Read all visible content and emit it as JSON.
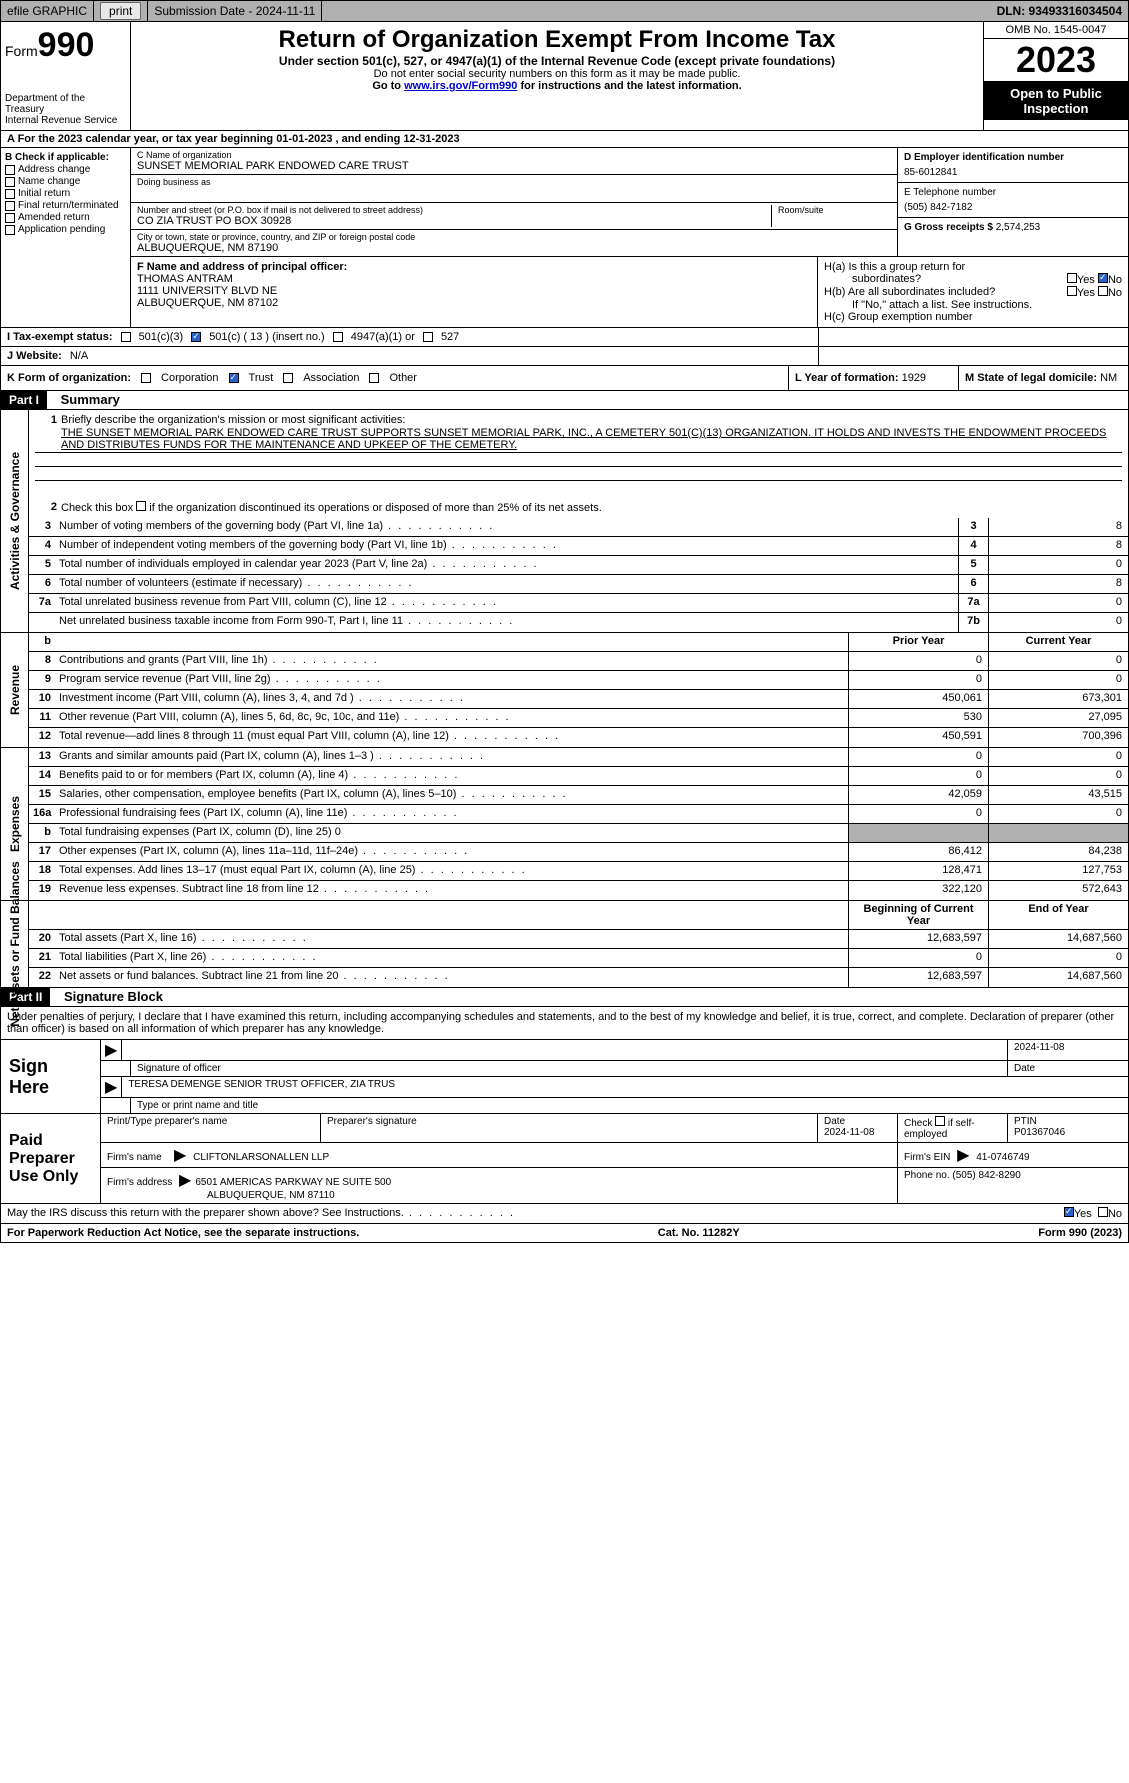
{
  "top_bar": {
    "efile_label": "efile GRAPHIC",
    "print_btn": "print",
    "submission_label": "Submission Date - 2024-11-11",
    "dln": "DLN: 93493316034504"
  },
  "header": {
    "form_word": "Form",
    "form_num": "990",
    "dept": "Department of the Treasury",
    "irs": "Internal Revenue Service",
    "title": "Return of Organization Exempt From Income Tax",
    "sub": "Under section 501(c), 527, or 4947(a)(1) of the Internal Revenue Code (except private foundations)",
    "ssn_note": "Do not enter social security numbers on this form as it may be made public.",
    "goto_pre": "Go to ",
    "goto_link": "www.irs.gov/Form990",
    "goto_post": " for instructions and the latest information.",
    "omb": "OMB No. 1545-0047",
    "year": "2023",
    "inspection": "Open to Public Inspection"
  },
  "row_a": "A For the 2023 calendar year, or tax year beginning 01-01-2023    , and ending 12-31-2023",
  "col_b": {
    "header": "B Check if applicable:",
    "items": [
      "Address change",
      "Name change",
      "Initial return",
      "Final return/terminated",
      "Amended return",
      "Application pending"
    ]
  },
  "col_c": {
    "name_label": "C Name of organization",
    "name": "SUNSET MEMORIAL PARK ENDOWED CARE TRUST",
    "dba_label": "Doing business as",
    "addr_label": "Number and street (or P.O. box if mail is not delivered to street address)",
    "addr": "CO ZIA TRUST PO BOX 30928",
    "room_label": "Room/suite",
    "city_label": "City or town, state or province, country, and ZIP or foreign postal code",
    "city": "ALBUQUERQUE, NM  87190"
  },
  "col_d": {
    "ein_label": "D Employer identification number",
    "ein": "85-6012841",
    "tel_label": "E Telephone number",
    "tel": "(505) 842-7182",
    "gross_label": "G Gross receipts $",
    "gross": "2,574,253"
  },
  "f_block": {
    "label": "F  Name and address of principal officer:",
    "name": "THOMAS ANTRAM",
    "addr1": "1111 UNIVERSITY BLVD NE",
    "addr2": "ALBUQUERQUE, NM  87102"
  },
  "h_block": {
    "ha": "H(a)  Is this a group return for",
    "ha2": "subordinates?",
    "hb": "H(b)  Are all subordinates included?",
    "hb_note": "If \"No,\" attach a list. See instructions.",
    "hc": "H(c)  Group exemption number",
    "yes": "Yes",
    "no": "No"
  },
  "i_row": {
    "label": "I    Tax-exempt status:",
    "opts": [
      "501(c)(3)",
      "501(c) ( 13 ) (insert no.)",
      "4947(a)(1) or",
      "527"
    ]
  },
  "j_row": {
    "label": "J    Website:",
    "val": "N/A"
  },
  "k_row": {
    "label": "K Form of organization:",
    "opts": [
      "Corporation",
      "Trust",
      "Association",
      "Other"
    ],
    "l_label": "L Year of formation:",
    "l_val": "1929",
    "m_label": "M State of legal domicile:",
    "m_val": "NM"
  },
  "part1": {
    "label": "Part I",
    "title": "Summary"
  },
  "activities": {
    "side": "Activities & Governance",
    "q1_label": "1",
    "q1": "Briefly describe the organization's mission or most significant activities:",
    "q1_text": "THE SUNSET MEMORIAL PARK ENDOWED CARE TRUST SUPPORTS SUNSET MEMORIAL PARK, INC., A CEMETERY 501(C)(13) ORGANIZATION. IT HOLDS AND INVESTS THE ENDOWMENT PROCEEDS AND DISTRIBUTES FUNDS FOR THE MAINTENANCE AND UPKEEP OF THE CEMETERY.",
    "q2_label": "2",
    "q2": "Check this box      if the organization discontinued its operations or disposed of more than 25% of its net assets.",
    "rows": [
      {
        "n": "3",
        "d": "Number of voting members of the governing body (Part VI, line 1a)",
        "b": "3",
        "v": "8"
      },
      {
        "n": "4",
        "d": "Number of independent voting members of the governing body (Part VI, line 1b)",
        "b": "4",
        "v": "8"
      },
      {
        "n": "5",
        "d": "Total number of individuals employed in calendar year 2023 (Part V, line 2a)",
        "b": "5",
        "v": "0"
      },
      {
        "n": "6",
        "d": "Total number of volunteers (estimate if necessary)",
        "b": "6",
        "v": "8"
      },
      {
        "n": "7a",
        "d": "Total unrelated business revenue from Part VIII, column (C), line 12",
        "b": "7a",
        "v": "0"
      },
      {
        "n": "",
        "d": "Net unrelated business taxable income from Form 990-T, Part I, line 11",
        "b": "7b",
        "v": "0"
      }
    ]
  },
  "revenue": {
    "side": "Revenue",
    "header": {
      "b": "b",
      "p": "Prior Year",
      "c": "Current Year"
    },
    "rows": [
      {
        "n": "8",
        "d": "Contributions and grants (Part VIII, line 1h)",
        "p": "0",
        "c": "0"
      },
      {
        "n": "9",
        "d": "Program service revenue (Part VIII, line 2g)",
        "p": "0",
        "c": "0"
      },
      {
        "n": "10",
        "d": "Investment income (Part VIII, column (A), lines 3, 4, and 7d )",
        "p": "450,061",
        "c": "673,301"
      },
      {
        "n": "11",
        "d": "Other revenue (Part VIII, column (A), lines 5, 6d, 8c, 9c, 10c, and 11e)",
        "p": "530",
        "c": "27,095"
      },
      {
        "n": "12",
        "d": "Total revenue—add lines 8 through 11 (must equal Part VIII, column (A), line 12)",
        "p": "450,591",
        "c": "700,396"
      }
    ]
  },
  "expenses": {
    "side": "Expenses",
    "rows": [
      {
        "n": "13",
        "d": "Grants and similar amounts paid (Part IX, column (A), lines 1–3 )",
        "p": "0",
        "c": "0"
      },
      {
        "n": "14",
        "d": "Benefits paid to or for members (Part IX, column (A), line 4)",
        "p": "0",
        "c": "0"
      },
      {
        "n": "15",
        "d": "Salaries, other compensation, employee benefits (Part IX, column (A), lines 5–10)",
        "p": "42,059",
        "c": "43,515"
      },
      {
        "n": "16a",
        "d": "Professional fundraising fees (Part IX, column (A), line 11e)",
        "p": "0",
        "c": "0"
      },
      {
        "n": "b",
        "d": "Total fundraising expenses (Part IX, column (D), line 25) 0",
        "p": "",
        "c": "",
        "shaded": true
      },
      {
        "n": "17",
        "d": "Other expenses (Part IX, column (A), lines 11a–11d, 11f–24e)",
        "p": "86,412",
        "c": "84,238"
      },
      {
        "n": "18",
        "d": "Total expenses. Add lines 13–17 (must equal Part IX, column (A), line 25)",
        "p": "128,471",
        "c": "127,753"
      },
      {
        "n": "19",
        "d": "Revenue less expenses. Subtract line 18 from line 12",
        "p": "322,120",
        "c": "572,643"
      }
    ]
  },
  "net": {
    "side": "Net Assets or Fund Balances",
    "header": {
      "p": "Beginning of Current Year",
      "c": "End of Year"
    },
    "rows": [
      {
        "n": "20",
        "d": "Total assets (Part X, line 16)",
        "p": "12,683,597",
        "c": "14,687,560"
      },
      {
        "n": "21",
        "d": "Total liabilities (Part X, line 26)",
        "p": "0",
        "c": "0"
      },
      {
        "n": "22",
        "d": "Net assets or fund balances. Subtract line 21 from line 20",
        "p": "12,683,597",
        "c": "14,687,560"
      }
    ]
  },
  "part2": {
    "label": "Part II",
    "title": "Signature Block"
  },
  "sig_text": "Under penalties of perjury, I declare that I have examined this return, including accompanying schedules and statements, and to the best of my knowledge and belief, it is true, correct, and complete. Declaration of preparer (other than officer) is based on all information of which preparer has any knowledge.",
  "sign_here": {
    "label": "Sign Here",
    "date": "2024-11-08",
    "sig_label": "Signature of officer",
    "date_label": "Date",
    "name": "TERESA DEMENGE  SENIOR TRUST OFFICER, ZIA TRUS",
    "name_label": "Type or print name and title"
  },
  "paid_prep": {
    "label": "Paid Preparer Use Only",
    "print_label": "Print/Type preparer's name",
    "sig_label": "Preparer's signature",
    "date_label": "Date",
    "date": "2024-11-08",
    "check_label": "Check        if self-employed",
    "ptin_label": "PTIN",
    "ptin": "P01367046",
    "firm_name_label": "Firm's name",
    "firm_name": "CLIFTONLARSONALLEN LLP",
    "firm_ein_label": "Firm's EIN",
    "firm_ein": "41-0746749",
    "firm_addr_label": "Firm's address",
    "firm_addr1": "6501 AMERICAS PARKWAY NE SUITE 500",
    "firm_addr2": "ALBUQUERQUE, NM  87110",
    "phone_label": "Phone no.",
    "phone": "(505) 842-8290"
  },
  "discuss": "May the IRS discuss this return with the preparer shown above? See Instructions.",
  "footer": {
    "left": "For Paperwork Reduction Act Notice, see the separate instructions.",
    "mid": "Cat. No. 11282Y",
    "right": "Form 990 (2023)"
  },
  "colors": {
    "bar_bg": "#b0b0b0",
    "black": "#000000",
    "check_blue": "#2962c6",
    "link": "#0000cc"
  }
}
